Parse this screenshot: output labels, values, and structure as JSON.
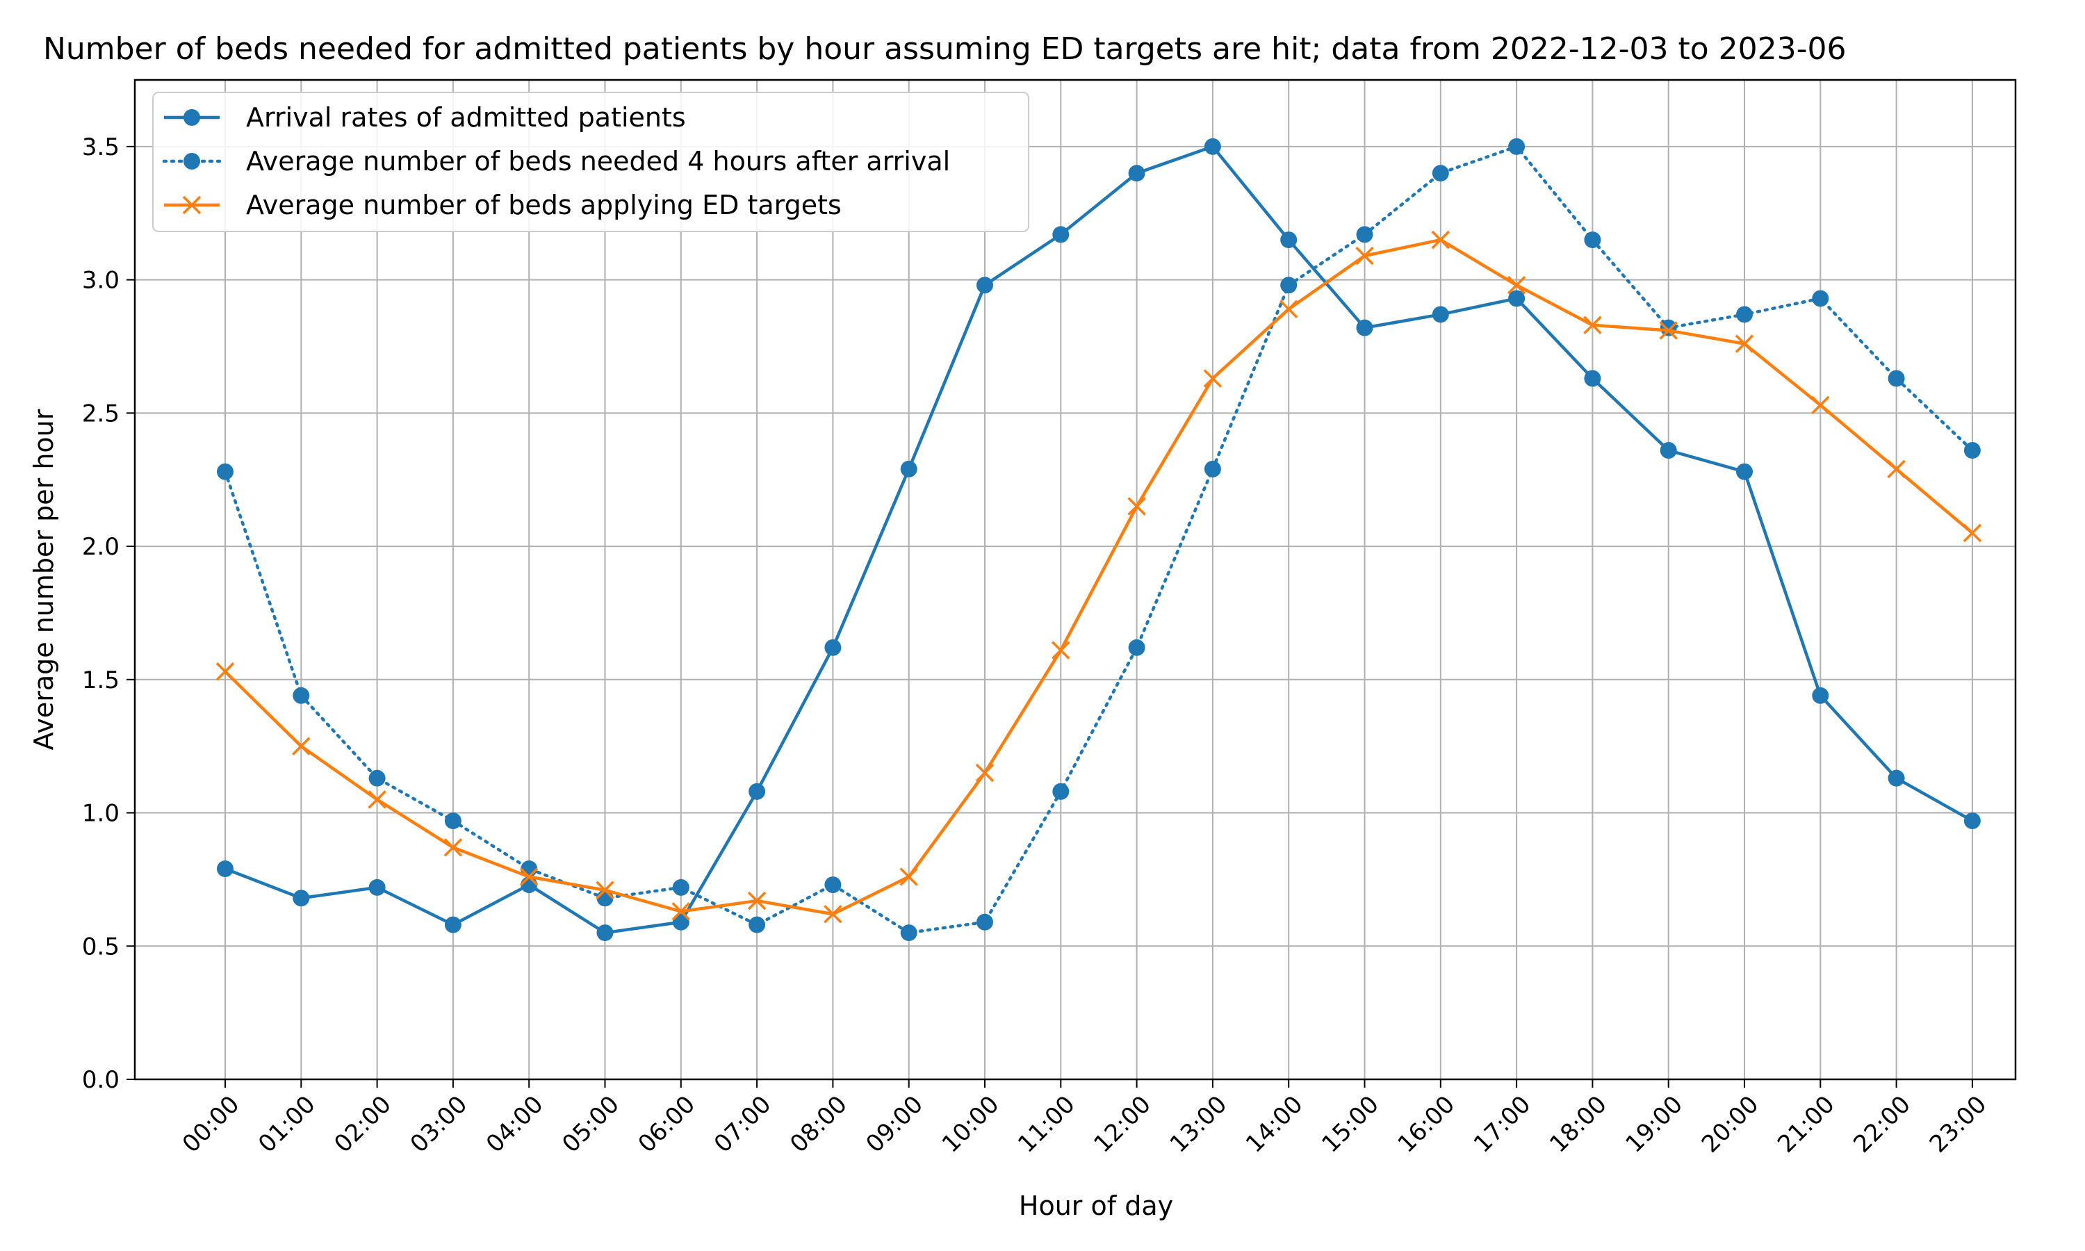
{
  "chart_data": {
    "type": "line",
    "title": "Number of beds needed for admitted patients by hour assuming ED targets are hit; data from 2022-12-03 to 2023-06",
    "xlabel": "Hour of day",
    "ylabel": "Average number per hour",
    "categories": [
      "00:00",
      "01:00",
      "02:00",
      "03:00",
      "04:00",
      "05:00",
      "06:00",
      "07:00",
      "08:00",
      "09:00",
      "10:00",
      "11:00",
      "12:00",
      "13:00",
      "14:00",
      "15:00",
      "16:00",
      "17:00",
      "18:00",
      "19:00",
      "20:00",
      "21:00",
      "22:00",
      "23:00"
    ],
    "ylim": [
      0,
      3.75
    ],
    "yticks": [
      0.0,
      0.5,
      1.0,
      1.5,
      2.0,
      2.5,
      3.0,
      3.5
    ],
    "ytick_labels": [
      "0.0",
      "0.5",
      "1.0",
      "1.5",
      "2.0",
      "2.5",
      "3.0",
      "3.5"
    ],
    "grid": true,
    "legend_position": "top-left",
    "series": [
      {
        "name": "Arrival rates of admitted patients",
        "color": "#1f77b4",
        "line_style": "solid",
        "marker": "circle",
        "values": [
          0.79,
          0.68,
          0.72,
          0.58,
          0.73,
          0.55,
          0.59,
          1.08,
          1.62,
          2.29,
          2.98,
          3.17,
          3.4,
          3.5,
          3.15,
          2.82,
          2.87,
          2.93,
          2.63,
          2.36,
          2.28,
          1.44,
          1.13,
          0.97
        ]
      },
      {
        "name": "Average number of beds needed 4 hours after arrival",
        "color": "#1f77b4",
        "line_style": "dotted",
        "marker": "circle",
        "values": [
          2.28,
          1.44,
          1.13,
          0.97,
          0.79,
          0.68,
          0.72,
          0.58,
          0.73,
          0.55,
          0.59,
          1.08,
          1.62,
          2.29,
          2.98,
          3.17,
          3.4,
          3.5,
          3.15,
          2.82,
          2.87,
          2.93,
          2.63,
          2.36
        ]
      },
      {
        "name": "Average number of beds applying ED targets",
        "color": "#ff7f0e",
        "line_style": "solid",
        "marker": "x",
        "values": [
          1.53,
          1.25,
          1.05,
          0.87,
          0.76,
          0.71,
          0.63,
          0.67,
          0.62,
          0.76,
          1.15,
          1.61,
          2.15,
          2.63,
          2.89,
          3.09,
          3.15,
          2.98,
          2.83,
          2.81,
          2.76,
          2.53,
          2.29,
          2.05
        ]
      }
    ]
  }
}
